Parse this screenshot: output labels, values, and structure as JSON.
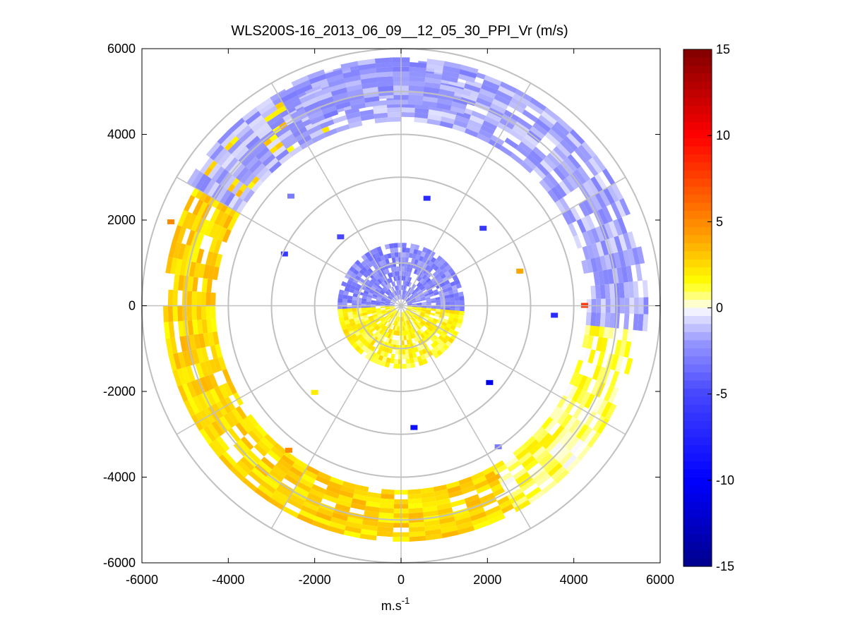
{
  "chart_data": {
    "type": "heatmap",
    "subtype": "polar-ppi",
    "title": "WLS200S-16_2013_06_09__12_05_30_PPI_Vr (m/s)",
    "xlabel": "m.s",
    "xlabel_superscript": "-1",
    "ylabel": "",
    "xlim": [
      -6000,
      6000
    ],
    "ylim": [
      -6000,
      6000
    ],
    "xticks": [
      -6000,
      -4000,
      -2000,
      0,
      2000,
      4000,
      6000
    ],
    "yticks": [
      6000,
      4000,
      2000,
      0,
      -2000,
      -4000,
      -6000
    ],
    "xtick_labels": [
      "-6000",
      "-4000",
      "-2000",
      "0",
      "2000",
      "4000",
      "6000"
    ],
    "ytick_labels": [
      "6000",
      "4000",
      "2000",
      "0",
      "-2000",
      "-4000",
      "-6000"
    ],
    "polar_grid": {
      "ring_radii": [
        1000,
        2000,
        3000,
        4000,
        5000,
        6000
      ],
      "spoke_angles_deg": [
        0,
        30,
        60,
        90,
        120,
        150,
        180,
        210,
        240,
        270,
        300,
        330
      ]
    },
    "colorbar": {
      "clim": [
        -15,
        15
      ],
      "ticks": [
        15,
        10,
        5,
        0,
        -5,
        -10,
        -15
      ],
      "tick_labels": [
        "15",
        "10",
        "5",
        "0",
        "-5",
        "-10",
        "-15"
      ],
      "colormap": "blue-white-yellow-red"
    },
    "regions": [
      {
        "name": "near-field-north",
        "r": [
          150,
          1450
        ],
        "az": [
          -95,
          95
        ],
        "vr": -2.6
      },
      {
        "name": "near-field-south",
        "r": [
          150,
          1450
        ],
        "az": [
          95,
          265
        ],
        "vr": 1.6
      },
      {
        "name": "outer-ring-west-south",
        "r": [
          4300,
          5500
        ],
        "az": [
          150,
          335
        ],
        "vr": 2.6
      },
      {
        "name": "outer-ring-south-east",
        "r": [
          4300,
          5500
        ],
        "az": [
          95,
          150
        ],
        "vr": 0.9
      },
      {
        "name": "outer-ring-east",
        "r": [
          4300,
          5700
        ],
        "az": [
          -60,
          95
        ],
        "vr": -1.6
      },
      {
        "name": "outer-ring-north",
        "r": [
          4700,
          5700
        ],
        "az": [
          -30,
          15
        ],
        "vr": -2.0
      }
    ],
    "isolated_points": [
      {
        "x": 4250,
        "y": 0,
        "vr": 8
      },
      {
        "x": 3550,
        "y": -230,
        "vr": -7
      },
      {
        "x": 2050,
        "y": -1800,
        "vr": -11
      },
      {
        "x": 300,
        "y": -2850,
        "vr": -9
      },
      {
        "x": 2750,
        "y": 800,
        "vr": 4
      },
      {
        "x": -2600,
        "y": -3380,
        "vr": 5
      },
      {
        "x": -5330,
        "y": 1950,
        "vr": 5
      },
      {
        "x": -2000,
        "y": -2030,
        "vr": 2
      },
      {
        "x": 600,
        "y": 2500,
        "vr": -7
      },
      {
        "x": 1900,
        "y": 1800,
        "vr": -6
      },
      {
        "x": -2700,
        "y": 1200,
        "vr": -6
      },
      {
        "x": -1400,
        "y": 1600,
        "vr": -5
      },
      {
        "x": -2550,
        "y": 2550,
        "vr": -3
      },
      {
        "x": 2250,
        "y": -3300,
        "vr": -3
      }
    ]
  }
}
